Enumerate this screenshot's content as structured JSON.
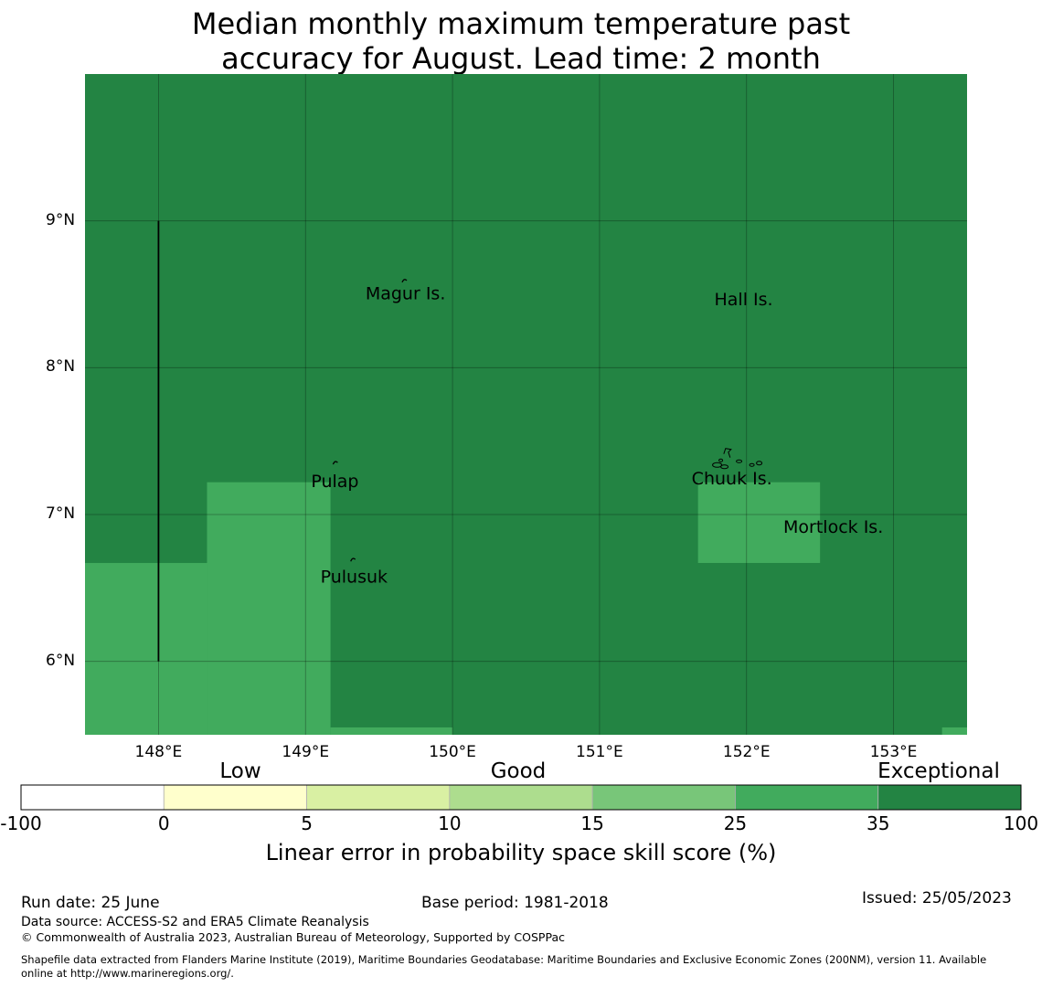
{
  "title": {
    "line1": "Median monthly maximum temperature past",
    "line2": "accuracy for August. Lead time: 2 month"
  },
  "map": {
    "lon_range": [
      147.5,
      153.5
    ],
    "lat_range": [
      5.5,
      10.0
    ],
    "lon_ticks": [
      {
        "value": 148,
        "label": "148°E"
      },
      {
        "value": 149,
        "label": "149°E"
      },
      {
        "value": 150,
        "label": "150°E"
      },
      {
        "value": 151,
        "label": "151°E"
      },
      {
        "value": 152,
        "label": "152°E"
      },
      {
        "value": 153,
        "label": "153°E"
      }
    ],
    "lat_ticks": [
      {
        "value": 9,
        "label": "9°N"
      },
      {
        "value": 8,
        "label": "8°N"
      },
      {
        "value": 7,
        "label": "7°N"
      },
      {
        "value": 6,
        "label": "6°N"
      }
    ],
    "background_color": "#238443",
    "regions": [
      {
        "lon": [
          147.5,
          148.33
        ],
        "lat": [
          5.5,
          6.67
        ],
        "color": "#41ab5d"
      },
      {
        "lon": [
          148.33,
          149.17
        ],
        "lat": [
          5.5,
          7.22
        ],
        "color": "#41ab5d"
      },
      {
        "lon": [
          149.17,
          150.0
        ],
        "lat": [
          5.5,
          5.55
        ],
        "color": "#41ab5d"
      },
      {
        "lon": [
          151.67,
          152.5
        ],
        "lat": [
          6.67,
          7.22
        ],
        "color": "#41ab5d"
      },
      {
        "lon": [
          153.33,
          153.5
        ],
        "lat": [
          5.5,
          5.55
        ],
        "color": "#41ab5d"
      }
    ],
    "boundary_line": {
      "lon": 148.0,
      "lat": [
        6.0,
        9.0
      ]
    },
    "places": [
      {
        "name": "Magur Is.",
        "lon": 149.68,
        "lat": 8.5
      },
      {
        "name": "Hall Is.",
        "lon": 151.98,
        "lat": 8.46
      },
      {
        "name": "Pulap",
        "lon": 149.2,
        "lat": 7.22
      },
      {
        "name": "Chuuk Is.",
        "lon": 151.9,
        "lat": 7.24
      },
      {
        "name": "Mortlock Is.",
        "lon": 152.59,
        "lat": 6.91
      },
      {
        "name": "Pulusuk",
        "lon": 149.33,
        "lat": 6.57
      }
    ],
    "islands": [
      {
        "name": "magur",
        "lon": 149.67,
        "lat": 8.6
      },
      {
        "name": "pulap",
        "lon": 149.2,
        "lat": 7.36
      },
      {
        "name": "pulusuk",
        "lon": 149.32,
        "lat": 6.7
      },
      {
        "name": "chuuk",
        "lon": 151.8,
        "lat": 7.35
      },
      {
        "name": "chuuk-north",
        "lon": 151.87,
        "lat": 7.45
      }
    ]
  },
  "colorbar": {
    "headings": [
      "Low",
      "Good",
      "Exceptional"
    ],
    "tick_labels": [
      "-100",
      "0",
      "5",
      "10",
      "15",
      "25",
      "35",
      "100"
    ],
    "colors": [
      "#ffffff",
      "#ffffcc",
      "#d9f0a3",
      "#addd8e",
      "#78c679",
      "#41ab5d",
      "#238443"
    ],
    "label": "Linear error in probability space skill score (%)"
  },
  "footer": {
    "run_date": "Run date: 25 June",
    "base_period": "Base period: 1981-2018",
    "issued": "Issued: 25/05/2023",
    "data_source": "Data source: ACCESS-S2 and ERA5 Climate Reanalysis",
    "copyright": "© Commonwealth of Australia 2023, Australian Bureau of Meteorology, Supported by COSPPac",
    "shapefile_line1": "Shapefile data extracted from Flanders Marine Institute (2019), Maritime Boundaries Geodatabase: Maritime Boundaries and Exclusive Economic Zones (200NM), version 11. Available",
    "shapefile_line2": "online at http://www.marineregions.org/."
  }
}
